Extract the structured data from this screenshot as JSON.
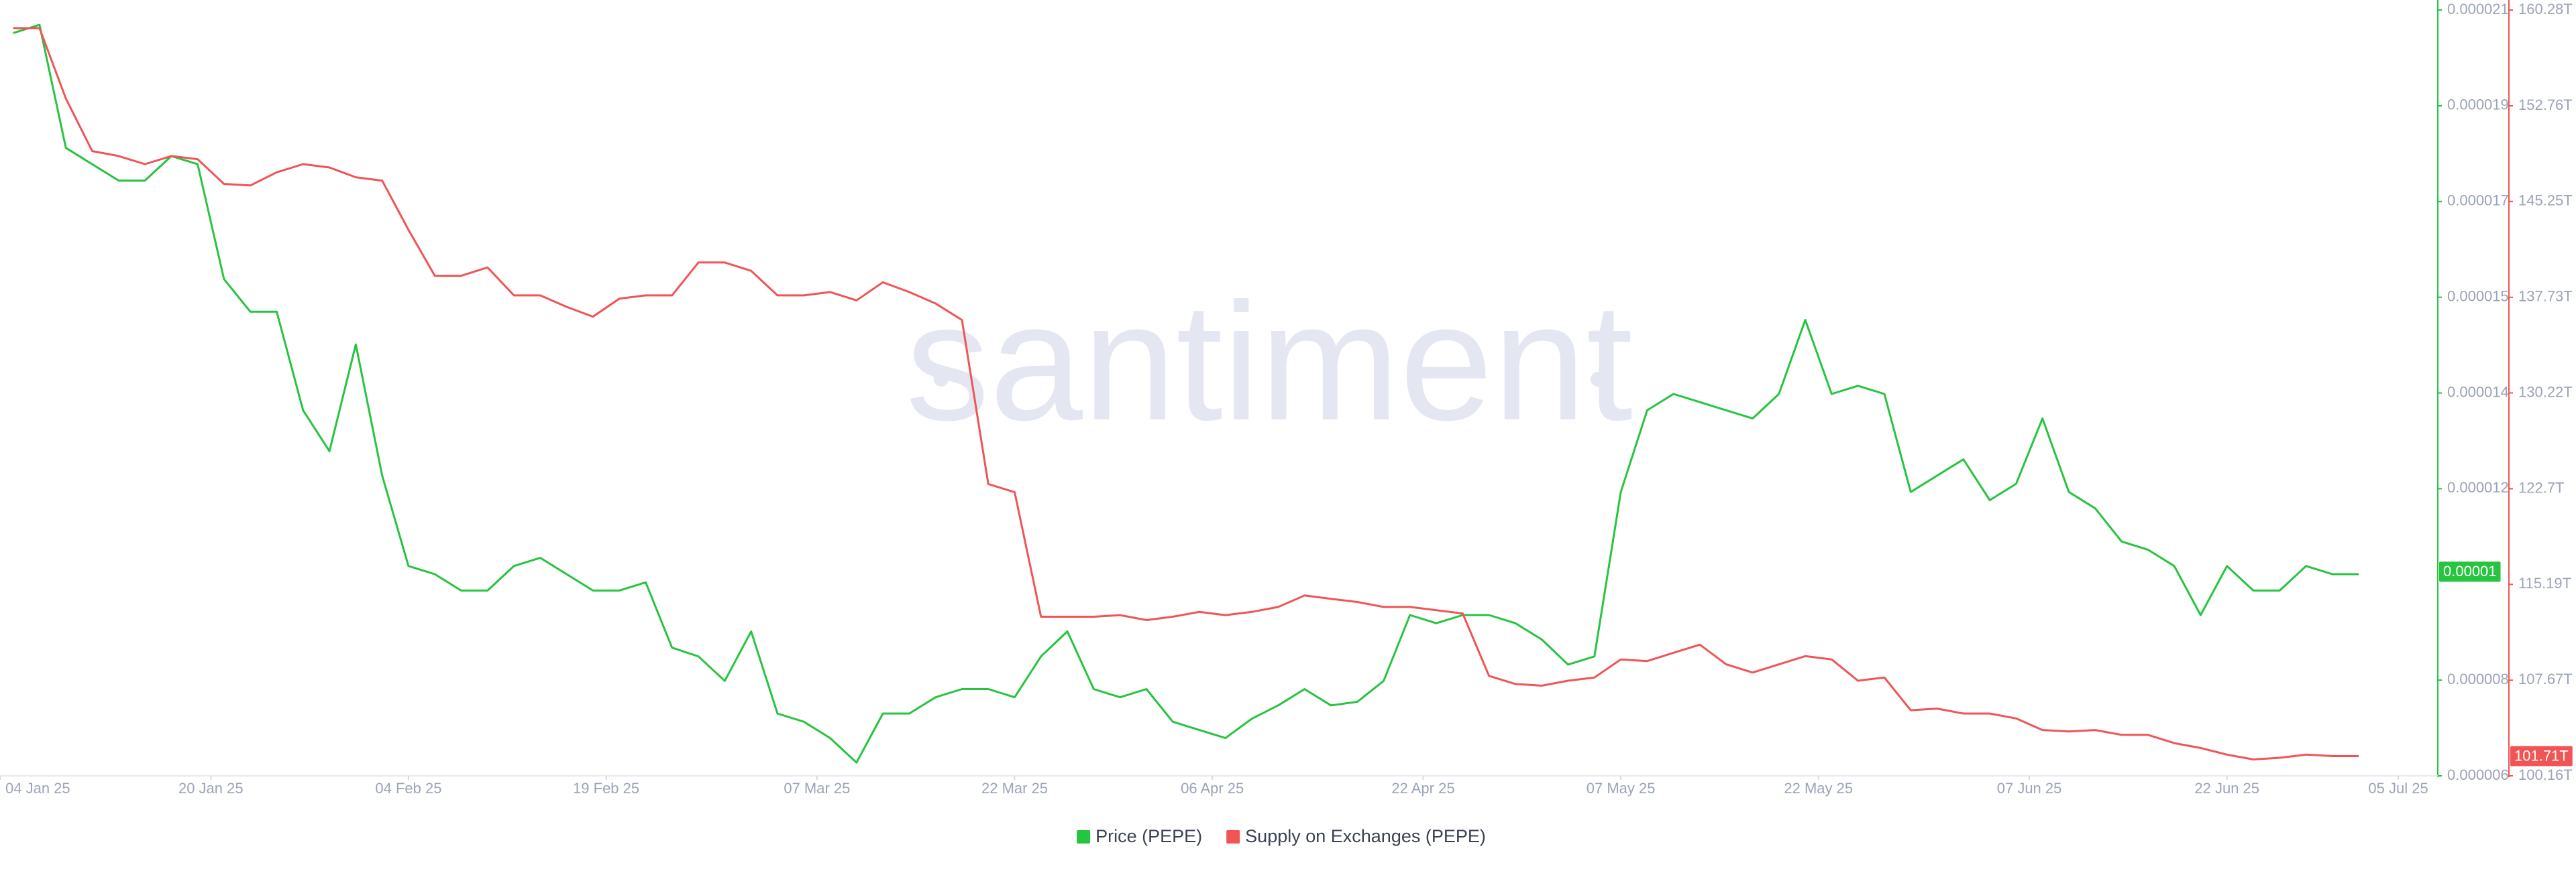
{
  "chart_data": {
    "type": "line",
    "watermark": "santiment",
    "x": [
      "2025-01-05",
      "2025-01-07",
      "2025-01-09",
      "2025-01-11",
      "2025-01-13",
      "2025-01-15",
      "2025-01-17",
      "2025-01-19",
      "2025-01-21",
      "2025-01-23",
      "2025-01-25",
      "2025-01-27",
      "2025-01-29",
      "2025-01-31",
      "2025-02-02",
      "2025-02-04",
      "2025-02-06",
      "2025-02-08",
      "2025-02-10",
      "2025-02-12",
      "2025-02-14",
      "2025-02-16",
      "2025-02-18",
      "2025-02-20",
      "2025-02-22",
      "2025-02-24",
      "2025-02-26",
      "2025-02-28",
      "2025-03-02",
      "2025-03-04",
      "2025-03-06",
      "2025-03-08",
      "2025-03-10",
      "2025-03-12",
      "2025-03-14",
      "2025-03-16",
      "2025-03-18",
      "2025-03-20",
      "2025-03-22",
      "2025-03-24",
      "2025-03-26",
      "2025-03-28",
      "2025-03-30",
      "2025-04-01",
      "2025-04-03",
      "2025-04-05",
      "2025-04-07",
      "2025-04-09",
      "2025-04-11",
      "2025-04-13",
      "2025-04-15",
      "2025-04-17",
      "2025-04-19",
      "2025-04-21",
      "2025-04-23",
      "2025-04-25",
      "2025-04-27",
      "2025-04-29",
      "2025-05-01",
      "2025-05-03",
      "2025-05-05",
      "2025-05-07",
      "2025-05-09",
      "2025-05-11",
      "2025-05-13",
      "2025-05-15",
      "2025-05-17",
      "2025-05-19",
      "2025-05-21",
      "2025-05-23",
      "2025-05-25",
      "2025-05-27",
      "2025-05-29",
      "2025-05-31",
      "2025-06-02",
      "2025-06-04",
      "2025-06-06",
      "2025-06-08",
      "2025-06-10",
      "2025-06-12",
      "2025-06-14",
      "2025-06-16",
      "2025-06-18",
      "2025-06-20",
      "2025-06-22",
      "2025-06-24",
      "2025-06-26",
      "2025-06-28",
      "2025-06-30",
      "2025-07-02"
    ],
    "xlim": [
      "2025-01-04",
      "2025-07-08"
    ],
    "xticks": [
      {
        "value": "2025-01-04",
        "label": "04 Jan 25"
      },
      {
        "value": "2025-01-20",
        "label": "20 Jan 25"
      },
      {
        "value": "2025-02-04",
        "label": "04 Feb 25"
      },
      {
        "value": "2025-02-19",
        "label": "19 Feb 25"
      },
      {
        "value": "2025-03-07",
        "label": "07 Mar 25"
      },
      {
        "value": "2025-03-22",
        "label": "22 Mar 25"
      },
      {
        "value": "2025-04-06",
        "label": "06 Apr 25"
      },
      {
        "value": "2025-04-22",
        "label": "22 Apr 25"
      },
      {
        "value": "2025-05-07",
        "label": "07 May 25"
      },
      {
        "value": "2025-05-22",
        "label": "22 May 25"
      },
      {
        "value": "2025-06-07",
        "label": "07 Jun 25"
      },
      {
        "value": "2025-06-22",
        "label": "22 Jun 25"
      },
      {
        "value": "2025-07-05",
        "label": "05 Jul 25"
      }
    ],
    "ylim": [
      6e-06,
      2.1e-05
    ],
    "yticks": [
      {
        "value": 6e-06,
        "label": "0.000006"
      },
      {
        "value": 7.875e-06,
        "label": "0.000008"
      },
      {
        "value": 1.1625e-05,
        "label": "0.000012"
      },
      {
        "value": 1.35e-05,
        "label": "0.000014"
      },
      {
        "value": 1.5375e-05,
        "label": "0.000015"
      },
      {
        "value": 1.725e-05,
        "label": "0.000017"
      },
      {
        "value": 1.9125e-05,
        "label": "0.000019"
      },
      {
        "value": 2.1e-05,
        "label": "0.000021"
      }
    ],
    "y2lim": [
      100.16,
      160.28
    ],
    "y2ticks": [
      {
        "value": 100.16,
        "label": "100.16T"
      },
      {
        "value": 107.67,
        "label": "107.67T"
      },
      {
        "value": 115.19,
        "label": "115.19T"
      },
      {
        "value": 122.7,
        "label": "122.7T"
      },
      {
        "value": 130.22,
        "label": "130.22T"
      },
      {
        "value": 137.73,
        "label": "137.73T"
      },
      {
        "value": 145.25,
        "label": "145.25T"
      },
      {
        "value": 152.76,
        "label": "152.76T"
      },
      {
        "value": 160.28,
        "label": "160.28T"
      }
    ],
    "series": [
      {
        "name": "Price (PEPE)",
        "color": "#26c43f",
        "axis": "y",
        "current_label": {
          "value": 1e-05,
          "label": "0.00001"
        },
        "values": [
          2.055e-05,
          2.071e-05,
          1.83e-05,
          1.798e-05,
          1.766e-05,
          1.766e-05,
          1.814e-05,
          1.798e-05,
          1.573e-05,
          1.509e-05,
          1.509e-05,
          1.316e-05,
          1.236e-05,
          1.445e-05,
          1.188e-05,
          1.011e-05,
          9.95e-06,
          9.63e-06,
          9.63e-06,
          1.011e-05,
          1.027e-05,
          9.95e-06,
          9.63e-06,
          9.63e-06,
          9.79e-06,
          8.51e-06,
          8.34e-06,
          7.86e-06,
          8.83e-06,
          7.22e-06,
          7.06e-06,
          6.74e-06,
          6.26e-06,
          7.22e-06,
          7.22e-06,
          7.54e-06,
          7.7e-06,
          7.7e-06,
          7.54e-06,
          8.34e-06,
          8.83e-06,
          7.7e-06,
          7.54e-06,
          7.7e-06,
          7.06e-06,
          6.9e-06,
          6.74e-06,
          7.12e-06,
          7.38e-06,
          7.7e-06,
          7.38e-06,
          7.45e-06,
          7.86e-06,
          9.15e-06,
          8.99e-06,
          9.15e-06,
          9.15e-06,
          8.99e-06,
          8.67e-06,
          8.18e-06,
          8.34e-06,
          1.156e-05,
          1.316e-05,
          1.348e-05,
          1.332e-05,
          1.316e-05,
          1.3e-05,
          1.348e-05,
          1.493e-05,
          1.348e-05,
          1.364e-05,
          1.348e-05,
          1.156e-05,
          1.188e-05,
          1.22e-05,
          1.14e-05,
          1.172e-05,
          1.3e-05,
          1.156e-05,
          1.124e-05,
          1.059e-05,
          1.043e-05,
          1.011e-05,
          9.15e-06,
          1.011e-05,
          9.63e-06,
          9.63e-06,
          1.011e-05,
          9.95e-06,
          9.95e-06
        ]
      },
      {
        "name": "Supply on Exchanges (PEPE)",
        "color": "#f05454",
        "axis": "y2",
        "current_label": {
          "value": 101.71,
          "label": "101.71T"
        },
        "values": [
          158.86,
          158.86,
          153.33,
          149.21,
          148.82,
          148.18,
          148.82,
          148.57,
          146.63,
          146.51,
          147.54,
          148.18,
          147.92,
          147.15,
          146.89,
          143.03,
          139.42,
          139.42,
          140.07,
          137.88,
          137.88,
          136.98,
          136.21,
          137.62,
          137.88,
          137.88,
          140.46,
          140.46,
          139.81,
          137.88,
          137.88,
          138.14,
          137.49,
          138.91,
          138.14,
          137.24,
          135.95,
          123.07,
          122.43,
          112.65,
          112.65,
          112.65,
          112.78,
          112.39,
          112.65,
          113.03,
          112.78,
          113.03,
          113.42,
          114.32,
          114.06,
          113.81,
          113.42,
          113.42,
          113.16,
          112.91,
          108.01,
          107.37,
          107.24,
          107.63,
          107.88,
          109.3,
          109.17,
          109.82,
          110.46,
          108.91,
          108.27,
          108.91,
          109.56,
          109.3,
          107.63,
          107.88,
          105.31,
          105.44,
          105.05,
          105.05,
          104.67,
          103.76,
          103.64,
          103.76,
          103.38,
          103.38,
          102.73,
          102.35,
          101.83,
          101.45,
          101.58,
          101.83,
          101.71,
          101.71
        ]
      }
    ],
    "legend": "bottom"
  }
}
